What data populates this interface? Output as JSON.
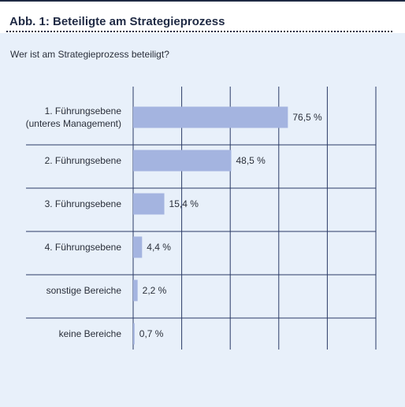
{
  "header": {
    "title": "Abb. 1: Beteiligte am Strategieprozess",
    "subtitle": "Wer ist am Strategieprozess beteiligt?"
  },
  "colors": {
    "background": "#e8f0fa",
    "bar": "#a4b4e0",
    "grid": "#2a3a66",
    "text": "#2a2f3a",
    "title": "#1f2a44"
  },
  "chart_data": {
    "type": "bar",
    "orientation": "horizontal",
    "title": "Abb. 1: Beteiligte am Strategieprozess",
    "subtitle": "Wer ist am Strategieprozess beteiligt?",
    "categories": [
      [
        "1. Führungsebene",
        "(unteres Management)"
      ],
      [
        "2. Führungsebene"
      ],
      [
        "3. Führungsebene"
      ],
      [
        "4. Führungsebene"
      ],
      [
        "sonstige Bereiche"
      ],
      [
        "keine Bereiche"
      ]
    ],
    "values": [
      76.5,
      48.5,
      15.4,
      4.4,
      2.2,
      0.7
    ],
    "value_labels": [
      "76,5 %",
      "48,5 %",
      "15,4 %",
      "4,4 %",
      "2,2 %",
      "0,7 %"
    ],
    "xlim": [
      0,
      120
    ],
    "x_gridlines": [
      0,
      24,
      48,
      72,
      96,
      120
    ],
    "grid": true,
    "legend": "none"
  }
}
